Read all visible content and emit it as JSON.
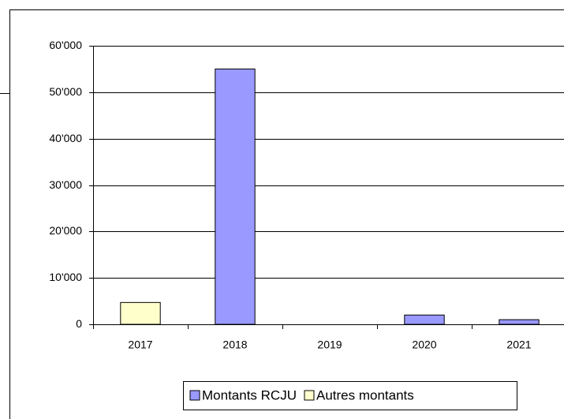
{
  "chart_data": {
    "type": "bar",
    "stacked": true,
    "categories": [
      "2017",
      "2018",
      "2019",
      "2020",
      "2021"
    ],
    "series": [
      {
        "name": "Montants RCJU",
        "color": "#9999ff",
        "values": [
          0,
          55000,
          0,
          2000,
          1000
        ]
      },
      {
        "name": "Autres montants",
        "color": "#ffffcc",
        "values": [
          4700,
          0,
          0,
          0,
          0
        ]
      }
    ],
    "ylim": [
      0,
      60000
    ],
    "yticks": [
      0,
      {
        "value": 10000,
        "label": "10'000"
      },
      {
        "value": 20000,
        "label": "20'000"
      },
      {
        "value": 30000,
        "label": "30'000"
      },
      {
        "value": 40000,
        "label": "40'000"
      },
      {
        "value": 50000,
        "label": "50'000"
      },
      {
        "value": 60000,
        "label": "60'000"
      }
    ],
    "grid": true,
    "legend": "bottom"
  }
}
